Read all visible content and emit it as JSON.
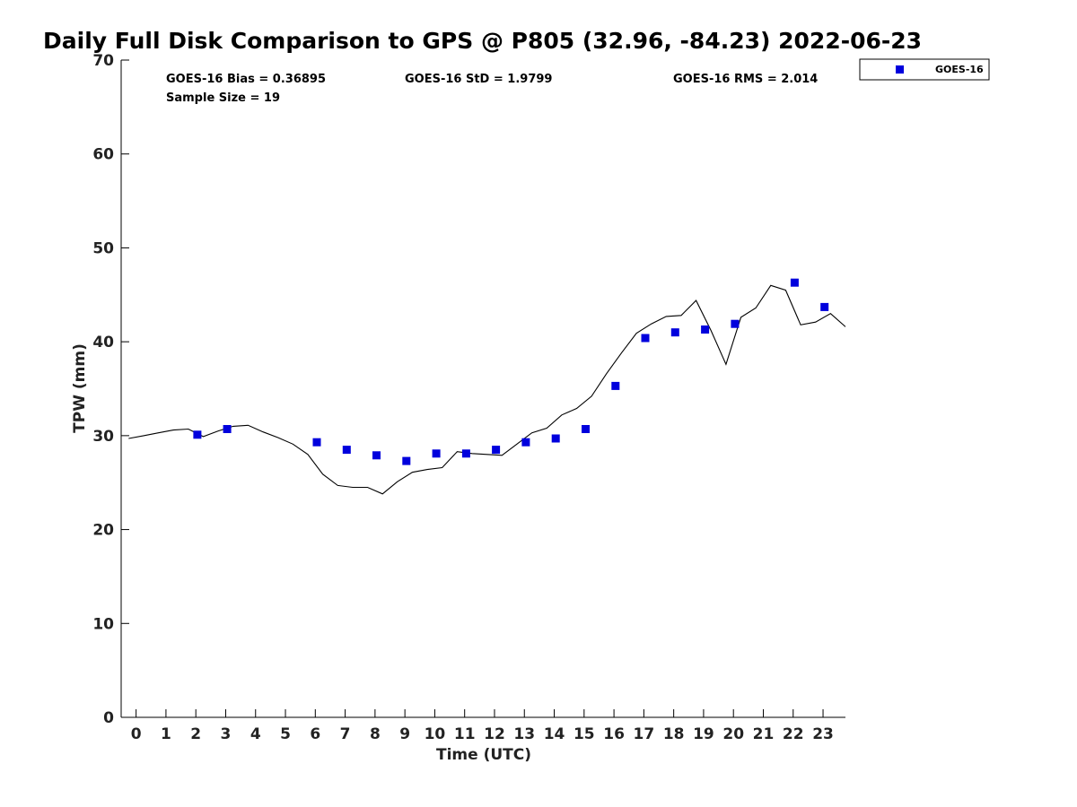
{
  "chart_data": {
    "type": "scatter",
    "title": "Daily Full Disk Comparison to GPS @ P805 (32.96, -84.23) 2022-06-23",
    "xlabel": "Time (UTC)",
    "ylabel": "TPW (mm)",
    "xlim": [
      -0.5,
      23.75
    ],
    "ylim": [
      0,
      70
    ],
    "x_ticks": [
      0,
      1,
      2,
      3,
      4,
      5,
      6,
      7,
      8,
      9,
      10,
      11,
      12,
      13,
      14,
      15,
      16,
      17,
      18,
      19,
      20,
      21,
      22,
      23
    ],
    "y_ticks": [
      0,
      10,
      20,
      30,
      40,
      50,
      60,
      70
    ],
    "grid": false,
    "legend_position": "top-right-outside",
    "stats": {
      "bias": "GOES-16 Bias = 0.36895",
      "std": "GOES-16 StD = 1.9799",
      "rms": "GOES-16 RMS = 2.014",
      "sample": "Sample Size = 19"
    },
    "series": [
      {
        "name": "GOES-16",
        "kind": "scatter",
        "marker": "square",
        "color": "#0000dd",
        "x": [
          2.05,
          3.05,
          6.05,
          7.05,
          8.05,
          9.05,
          10.05,
          11.05,
          12.05,
          13.05,
          14.05,
          15.05,
          16.05,
          17.05,
          18.05,
          19.05,
          20.05,
          22.05,
          23.05
        ],
        "y": [
          30.1,
          30.7,
          29.3,
          28.5,
          27.9,
          27.3,
          28.1,
          28.1,
          28.5,
          29.3,
          29.7,
          30.7,
          35.3,
          40.4,
          41.0,
          41.3,
          41.9,
          46.3,
          43.7
        ]
      },
      {
        "kind": "line",
        "color": "#000000",
        "x": [
          -0.25,
          0.25,
          0.75,
          1.25,
          1.75,
          2.0,
          2.25,
          2.75,
          3.25,
          3.75,
          4.25,
          4.75,
          5.25,
          5.75,
          6.25,
          6.75,
          7.25,
          7.75,
          8.25,
          8.75,
          9.25,
          9.75,
          10.25,
          10.75,
          11.25,
          11.75,
          12.25,
          12.75,
          13.25,
          13.75,
          14.25,
          14.75,
          15.25,
          15.75,
          16.25,
          16.75,
          17.25,
          17.75,
          18.25,
          18.75,
          19.25,
          19.75,
          20.25,
          20.75,
          21.25,
          21.75,
          22.25,
          22.75,
          23.25,
          23.75
        ],
        "y": [
          29.7,
          30.0,
          30.3,
          30.6,
          30.7,
          30.3,
          29.9,
          30.5,
          31.0,
          31.1,
          30.4,
          29.8,
          29.1,
          28.0,
          25.9,
          24.7,
          24.5,
          24.5,
          23.8,
          25.1,
          26.1,
          26.4,
          26.6,
          28.3,
          28.1,
          28.0,
          27.9,
          29.1,
          30.3,
          30.8,
          32.2,
          32.9,
          34.2,
          36.6,
          38.8,
          40.9,
          41.9,
          42.7,
          42.8,
          44.4,
          41.2,
          37.6,
          42.6,
          43.6,
          46.0,
          45.5,
          41.8,
          42.1,
          43.0,
          41.6
        ]
      }
    ]
  }
}
